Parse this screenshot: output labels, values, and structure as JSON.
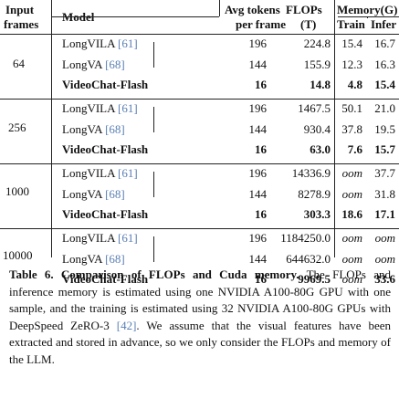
{
  "table": {
    "headers": {
      "input_frames_line1": "Input",
      "input_frames_line2": "frames",
      "model": "Model",
      "avg_tokens_line1": "Avg tokens",
      "avg_tokens_line2": "per frame",
      "flops_line1": "FLOPs",
      "flops_line2": "(T)",
      "memory": "Memory(G)",
      "train": "Train",
      "infer": "Infer"
    },
    "groups": [
      {
        "frames": "64",
        "rows": [
          {
            "model": "LongVILA",
            "cite": "[61]",
            "tokens": "196",
            "flops": "224.8",
            "train": "15.4",
            "infer": "16.7",
            "bold": false
          },
          {
            "model": "LongVA",
            "cite": "[68]",
            "tokens": "144",
            "flops": "155.9",
            "train": "12.3",
            "infer": "16.3",
            "bold": false
          },
          {
            "model": "VideoChat-Flash",
            "cite": "",
            "tokens": "16",
            "flops": "14.8",
            "train": "4.8",
            "infer": "15.4",
            "bold": true
          }
        ]
      },
      {
        "frames": "256",
        "rows": [
          {
            "model": "LongVILA",
            "cite": "[61]",
            "tokens": "196",
            "flops": "1467.5",
            "train": "50.1",
            "infer": "21.0",
            "bold": false
          },
          {
            "model": "LongVA",
            "cite": "[68]",
            "tokens": "144",
            "flops": "930.4",
            "train": "37.8",
            "infer": "19.5",
            "bold": false
          },
          {
            "model": "VideoChat-Flash",
            "cite": "",
            "tokens": "16",
            "flops": "63.0",
            "train": "7.6",
            "infer": "15.7",
            "bold": true
          }
        ]
      },
      {
        "frames": "1000",
        "rows": [
          {
            "model": "LongVILA",
            "cite": "[61]",
            "tokens": "196",
            "flops": "14336.9",
            "train": "oom",
            "infer": "37.7",
            "bold": false
          },
          {
            "model": "LongVA",
            "cite": "[68]",
            "tokens": "144",
            "flops": "8278.9",
            "train": "oom",
            "infer": "31.8",
            "bold": false
          },
          {
            "model": "VideoChat-Flash",
            "cite": "",
            "tokens": "16",
            "flops": "303.3",
            "train": "18.6",
            "infer": "17.1",
            "bold": true
          }
        ]
      },
      {
        "frames": "10000",
        "rows": [
          {
            "model": "LongVILA",
            "cite": "[61]",
            "tokens": "196",
            "flops": "1184250.0",
            "train": "oom",
            "infer": "oom",
            "bold": false
          },
          {
            "model": "LongVA",
            "cite": "[68]",
            "tokens": "144",
            "flops": "644632.0",
            "train": "oom",
            "infer": "oom",
            "bold": false
          },
          {
            "model": "VideoChat-Flash",
            "cite": "",
            "tokens": "16",
            "flops": "9969.5",
            "train": "oom",
            "infer": "33.6",
            "bold": true
          }
        ]
      }
    ]
  },
  "caption": {
    "label": "Table 6.",
    "title": "Comparison of FLOPs and Cuda memory.",
    "text_part1": "The FLOPs and inference memory is estimated using one NVIDIA A100-80G GPU with one sample, and the training is estimated using 32 NVIDIA A100-80G GPUs with DeepSpeed ZeRO-3",
    "cite": "[42]",
    "text_part2": ". We assume that the visual features have been extracted and stored in advance, so we only consider the FLOPs and memory of the LLM."
  }
}
